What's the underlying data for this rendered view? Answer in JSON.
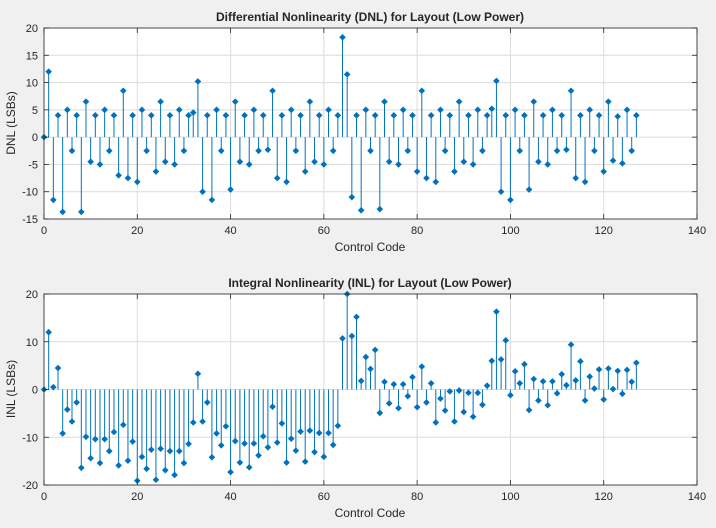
{
  "chart_data": [
    {
      "type": "stem",
      "title": "Differential Nonlinearity (DNL) for Layout (Low Power)",
      "xlabel": "Control Code",
      "ylabel": "DNL (LSBs)",
      "xlim": [
        0,
        140
      ],
      "ylim": [
        -15,
        20
      ],
      "xticks": [
        0,
        20,
        40,
        60,
        80,
        100,
        120,
        140
      ],
      "yticks": [
        -15,
        -10,
        -5,
        0,
        5,
        10,
        15,
        20
      ],
      "grid": true,
      "marker": "diamond",
      "color": "#0072bd",
      "x": [
        0,
        1,
        2,
        3,
        4,
        5,
        6,
        7,
        8,
        9,
        10,
        11,
        12,
        13,
        14,
        15,
        16,
        17,
        18,
        19,
        20,
        21,
        22,
        23,
        24,
        25,
        26,
        27,
        28,
        29,
        30,
        31,
        32,
        33,
        34,
        35,
        36,
        37,
        38,
        39,
        40,
        41,
        42,
        43,
        44,
        45,
        46,
        47,
        48,
        49,
        50,
        51,
        52,
        53,
        54,
        55,
        56,
        57,
        58,
        59,
        60,
        61,
        62,
        63,
        64,
        65,
        66,
        67,
        68,
        69,
        70,
        71,
        72,
        73,
        74,
        75,
        76,
        77,
        78,
        79,
        80,
        81,
        82,
        83,
        84,
        85,
        86,
        87,
        88,
        89,
        90,
        91,
        92,
        93,
        94,
        95,
        96,
        97,
        98,
        99,
        100,
        101,
        102,
        103,
        104,
        105,
        106,
        107,
        108,
        109,
        110,
        111,
        112,
        113,
        114,
        115,
        116,
        117,
        118,
        119,
        120,
        121,
        122,
        123,
        124,
        125,
        126,
        127
      ],
      "y": [
        0,
        12,
        -11.5,
        4,
        -13.7,
        5,
        -2.5,
        4,
        -13.7,
        6.5,
        -4.5,
        4,
        -5,
        5,
        -2.5,
        4,
        -7,
        8.5,
        -7.5,
        4,
        -8.2,
        5,
        -2.5,
        4,
        -6.3,
        6.5,
        -4.5,
        4,
        -5,
        5,
        -2.5,
        4,
        4.5,
        10.2,
        -10,
        4,
        -11.5,
        5,
        -2.5,
        4,
        -9.6,
        6.5,
        -4.5,
        4,
        -5,
        5,
        -2.5,
        4,
        -2.3,
        8.5,
        -7.5,
        4,
        -8.2,
        5,
        -2.5,
        4,
        -6.3,
        6.5,
        -4.5,
        4,
        -5,
        5,
        -2.5,
        4,
        18.3,
        11.5,
        -11,
        4,
        -13.4,
        5,
        -2.5,
        4,
        -13.2,
        6.5,
        -4.5,
        4,
        -5,
        5,
        -2.5,
        4,
        -6.3,
        8.5,
        -7.5,
        4,
        -8.2,
        5,
        -2.5,
        4,
        -6.3,
        6.5,
        -4.5,
        4,
        -5,
        5,
        -2.5,
        4,
        5.2,
        10.3,
        -10,
        4,
        -11.5,
        5,
        -2.5,
        4,
        -9.6,
        6.5,
        -4.5,
        4,
        -5,
        5,
        -2.5,
        4,
        -2.3,
        8.5,
        -7.5,
        4,
        -8.2,
        5,
        -2.5,
        4,
        -6.3,
        6.5,
        -4.3,
        3.8,
        -4.8,
        5,
        -2.5,
        4
      ]
    },
    {
      "type": "stem",
      "title": "Integral Nonlinearity (INL) for Layout (Low Power)",
      "xlabel": "Control Code",
      "ylabel": "INL (LSBs)",
      "xlim": [
        0,
        140
      ],
      "ylim": [
        -20,
        20
      ],
      "xticks": [
        0,
        20,
        40,
        60,
        80,
        100,
        120,
        140
      ],
      "yticks": [
        -20,
        -10,
        0,
        10,
        20
      ],
      "grid": true,
      "marker": "diamond",
      "color": "#0072bd",
      "x": [
        0,
        1,
        2,
        3,
        4,
        5,
        6,
        7,
        8,
        9,
        10,
        11,
        12,
        13,
        14,
        15,
        16,
        17,
        18,
        19,
        20,
        21,
        22,
        23,
        24,
        25,
        26,
        27,
        28,
        29,
        30,
        31,
        32,
        33,
        34,
        35,
        36,
        37,
        38,
        39,
        40,
        41,
        42,
        43,
        44,
        45,
        46,
        47,
        48,
        49,
        50,
        51,
        52,
        53,
        54,
        55,
        56,
        57,
        58,
        59,
        60,
        61,
        62,
        63,
        64,
        65,
        66,
        67,
        68,
        69,
        70,
        71,
        72,
        73,
        74,
        75,
        76,
        77,
        78,
        79,
        80,
        81,
        82,
        83,
        84,
        85,
        86,
        87,
        88,
        89,
        90,
        91,
        92,
        93,
        94,
        95,
        96,
        97,
        98,
        99,
        100,
        101,
        102,
        103,
        104,
        105,
        106,
        107,
        108,
        109,
        110,
        111,
        112,
        113,
        114,
        115,
        116,
        117,
        118,
        119,
        120,
        121,
        122,
        123,
        124,
        125,
        126,
        127
      ],
      "y": [
        0,
        12,
        0.5,
        4.5,
        -9.2,
        -4.2,
        -6.7,
        -2.7,
        -16.4,
        -9.9,
        -14.4,
        -10.4,
        -15.4,
        -10.4,
        -12.9,
        -8.9,
        -15.9,
        -7.4,
        -14.9,
        -10.9,
        -19.1,
        -14.1,
        -16.6,
        -12.6,
        -18.9,
        -12.4,
        -16.9,
        -12.9,
        -17.9,
        -12.9,
        -15.4,
        -11.4,
        -6.9,
        3.3,
        -6.7,
        -2.7,
        -14.2,
        -9.2,
        -11.7,
        -7.7,
        -17.3,
        -10.8,
        -15.3,
        -11.3,
        -16.3,
        -11.3,
        -13.8,
        -9.8,
        -12.1,
        -3.6,
        -11.1,
        -7.1,
        -15.3,
        -10.3,
        -12.8,
        -8.8,
        -15.1,
        -8.6,
        -13.1,
        -9.1,
        -14.1,
        -9.1,
        -11.6,
        -7.6,
        10.7,
        22.2,
        11.2,
        15.2,
        1.8,
        6.8,
        4.3,
        8.3,
        -4.9,
        1.6,
        -2.9,
        1.1,
        -3.9,
        1.1,
        -1.4,
        2.6,
        -3.7,
        4.8,
        -2.7,
        1.3,
        -6.9,
        -1.9,
        -4.4,
        -0.4,
        -6.7,
        -0.2,
        -4.7,
        -0.7,
        -5.7,
        -0.7,
        -3.2,
        0.8,
        6,
        16.3,
        6.3,
        10.3,
        -1.2,
        3.8,
        1.3,
        5.3,
        -4.3,
        2.2,
        -2.3,
        1.7,
        -3.3,
        1.7,
        -0.8,
        3.2,
        0.9,
        9.4,
        1.9,
        5.9,
        -2.3,
        2.7,
        0.2,
        4.2,
        -2.1,
        4.4,
        0.1,
        3.9,
        -0.9,
        4.1,
        1.6,
        5.6
      ]
    }
  ]
}
